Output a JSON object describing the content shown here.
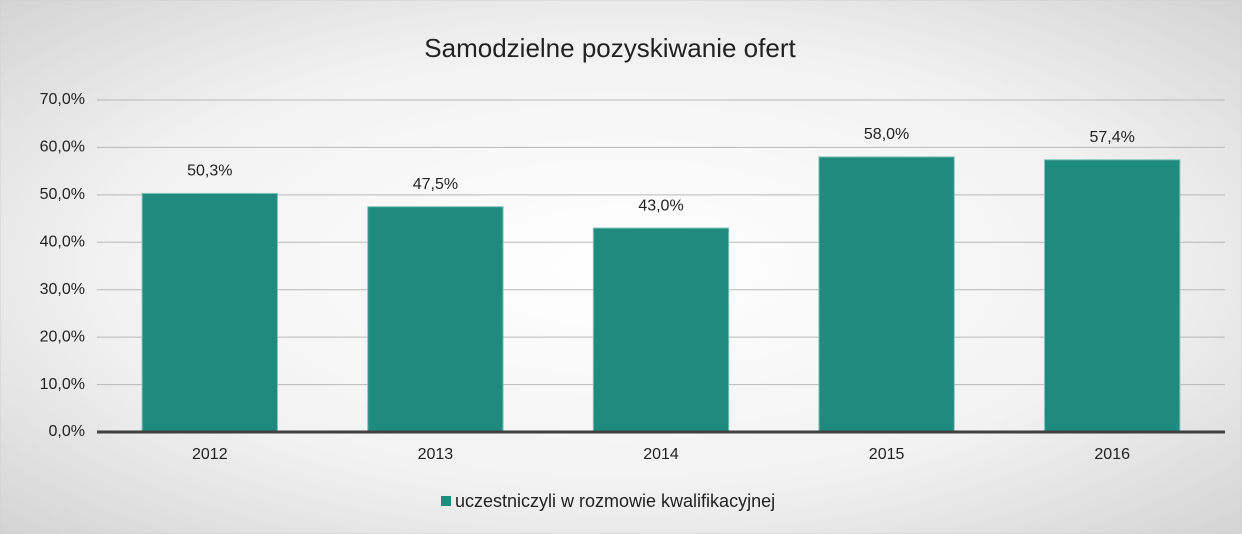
{
  "chart_data": {
    "type": "bar",
    "title": "Samodzielne pozyskiwanie ofert",
    "categories": [
      "2012",
      "2013",
      "2014",
      "2015",
      "2016"
    ],
    "series": [
      {
        "name": "uczestniczyli w rozmowie kwalifikacyjnej",
        "color": "#1f8a7e",
        "values": [
          50.3,
          47.5,
          43.0,
          58.0,
          57.4
        ],
        "value_labels": [
          "50,3%",
          "47,5%",
          "43,0%",
          "58,0%",
          "57,4%"
        ]
      }
    ],
    "ylim": [
      0,
      70
    ],
    "yticks": [
      {
        "value": 0,
        "label": "0,0%"
      },
      {
        "value": 10,
        "label": "10,0%"
      },
      {
        "value": 20,
        "label": "20,0%"
      },
      {
        "value": 30,
        "label": "30,0%"
      },
      {
        "value": 40,
        "label": "40,0%"
      },
      {
        "value": 50,
        "label": "50,0%"
      },
      {
        "value": 60,
        "label": "60,0%"
      },
      {
        "value": 70,
        "label": "70,0%"
      }
    ],
    "grid": true,
    "legend": "bottom"
  }
}
